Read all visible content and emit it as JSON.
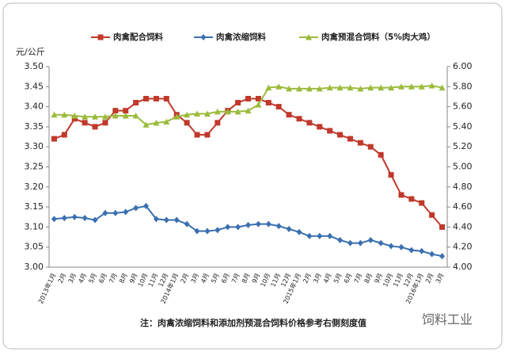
{
  "chart_data": {
    "type": "line",
    "y_label": "元/公斤",
    "note": "注：肉禽浓缩饲料和添加剂预混合饲料价格参考右侧刻度值",
    "watermark": "饲料工业",
    "categories": [
      "2013年1月",
      "2月",
      "3月",
      "4月",
      "5月",
      "6月",
      "7月",
      "8月",
      "9月",
      "10月",
      "11月",
      "12月",
      "2014年1月",
      "2月",
      "3月",
      "4月",
      "5月",
      "6月",
      "7月",
      "8月",
      "9月",
      "10月",
      "11月",
      "12月",
      "2015年1月",
      "2月",
      "3月",
      "4月",
      "5月",
      "6月",
      "7月",
      "8月",
      "9月",
      "10月",
      "11月",
      "12月",
      "2016年1月",
      "2月",
      "3月"
    ],
    "series": [
      {
        "name": "肉禽配合饲料",
        "color": "#c0392b",
        "marker": "square",
        "axis": "y",
        "values": [
          3.32,
          3.33,
          3.37,
          3.36,
          3.35,
          3.36,
          3.39,
          3.39,
          3.41,
          3.42,
          3.42,
          3.42,
          3.38,
          3.36,
          3.33,
          3.33,
          3.36,
          3.39,
          3.41,
          3.42,
          3.42,
          3.41,
          3.4,
          3.38,
          3.37,
          3.36,
          3.35,
          3.34,
          3.33,
          3.32,
          3.31,
          3.3,
          3.28,
          3.23,
          3.18,
          3.17,
          3.16,
          3.13,
          3.1
        ]
      },
      {
        "name": "肉禽浓缩饲料",
        "color": "#3a6fb0",
        "marker": "diamond",
        "axis": "y2",
        "values": [
          4.48,
          4.49,
          4.5,
          4.49,
          4.47,
          4.54,
          4.54,
          4.55,
          4.59,
          4.61,
          4.48,
          4.47,
          4.47,
          4.43,
          4.36,
          4.36,
          4.37,
          4.4,
          4.4,
          4.42,
          4.43,
          4.43,
          4.41,
          4.38,
          4.35,
          4.31,
          4.31,
          4.31,
          4.27,
          4.24,
          4.24,
          4.27,
          4.24,
          4.21,
          4.2,
          4.17,
          4.16,
          4.13,
          4.11
        ]
      },
      {
        "name": "肉禽预混合饲料（5%肉大鸡）",
        "color": "#9bbb3b",
        "marker": "triangle",
        "axis": "y2",
        "values": [
          5.52,
          5.52,
          5.51,
          5.5,
          5.5,
          5.5,
          5.51,
          5.51,
          5.51,
          5.42,
          5.44,
          5.45,
          5.5,
          5.52,
          5.53,
          5.53,
          5.55,
          5.55,
          5.55,
          5.56,
          5.62,
          5.79,
          5.8,
          5.78,
          5.78,
          5.78,
          5.78,
          5.79,
          5.79,
          5.79,
          5.78,
          5.79,
          5.79,
          5.79,
          5.8,
          5.8,
          5.8,
          5.81,
          5.79
        ]
      }
    ],
    "ylim": [
      3.0,
      3.5
    ],
    "yticks": [
      {
        "value": 3.0,
        "label": "3.00"
      },
      {
        "value": 3.05,
        "label": "3.05"
      },
      {
        "value": 3.1,
        "label": "3.10"
      },
      {
        "value": 3.15,
        "label": "3.15"
      },
      {
        "value": 3.2,
        "label": "3.20"
      },
      {
        "value": 3.25,
        "label": "3.25"
      },
      {
        "value": 3.3,
        "label": "3.30"
      },
      {
        "value": 3.35,
        "label": "3.35"
      },
      {
        "value": 3.4,
        "label": "3.40"
      },
      {
        "value": 3.45,
        "label": "3.45"
      },
      {
        "value": 3.5,
        "label": "3.50"
      }
    ],
    "y2lim": [
      4.0,
      6.0
    ],
    "y2ticks": [
      {
        "value": 4.0,
        "label": "4.00"
      },
      {
        "value": 4.2,
        "label": "4.20"
      },
      {
        "value": 4.4,
        "label": "4.40"
      },
      {
        "value": 4.6,
        "label": "4.60"
      },
      {
        "value": 4.8,
        "label": "4.80"
      },
      {
        "value": 5.0,
        "label": "5.00"
      },
      {
        "value": 5.2,
        "label": "5.20"
      },
      {
        "value": 5.4,
        "label": "5.40"
      },
      {
        "value": 5.6,
        "label": "5.60"
      },
      {
        "value": 5.8,
        "label": "5.80"
      },
      {
        "value": 6.0,
        "label": "6.00"
      }
    ],
    "grid": false,
    "legend": "top"
  }
}
